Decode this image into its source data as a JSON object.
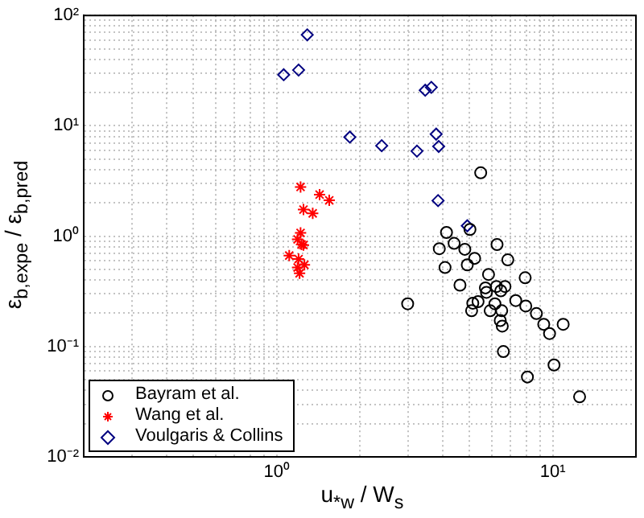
{
  "chart_data": {
    "type": "scatter",
    "xlabel": "u$_{*w}$ / W$_{s}$",
    "ylabel": "ε$_{b,expe}$ / ε$_{b,pred}$",
    "log": "xy",
    "grid": true,
    "legend": "bottom left",
    "xlim": [
      0.2,
      20
    ],
    "ylim": [
      0.01,
      100
    ],
    "xticks": [
      {
        "value": 0.2,
        "label": null
      },
      {
        "value": 0.3,
        "label": null
      },
      {
        "value": 0.4,
        "label": null
      },
      {
        "value": 0.5,
        "label": null
      },
      {
        "value": 0.6,
        "label": null
      },
      {
        "value": 0.7,
        "label": null
      },
      {
        "value": 0.8,
        "label": null
      },
      {
        "value": 0.9,
        "label": null
      },
      {
        "value": 1,
        "label": "10⁰"
      },
      {
        "value": 2,
        "label": null
      },
      {
        "value": 3,
        "label": null
      },
      {
        "value": 4,
        "label": null
      },
      {
        "value": 5,
        "label": null
      },
      {
        "value": 6,
        "label": null
      },
      {
        "value": 7,
        "label": null
      },
      {
        "value": 8,
        "label": null
      },
      {
        "value": 9,
        "label": null
      },
      {
        "value": 10,
        "label": "10¹"
      },
      {
        "value": 20,
        "label": null
      }
    ],
    "yticks": [
      {
        "value": 0.01,
        "label": "10⁻²"
      },
      {
        "value": 0.02,
        "label": null
      },
      {
        "value": 0.03,
        "label": null
      },
      {
        "value": 0.04,
        "label": null
      },
      {
        "value": 0.05,
        "label": null
      },
      {
        "value": 0.06,
        "label": null
      },
      {
        "value": 0.07,
        "label": null
      },
      {
        "value": 0.08,
        "label": null
      },
      {
        "value": 0.09,
        "label": null
      },
      {
        "value": 0.1,
        "label": "10⁻¹"
      },
      {
        "value": 0.2,
        "label": null
      },
      {
        "value": 0.3,
        "label": null
      },
      {
        "value": 0.4,
        "label": null
      },
      {
        "value": 0.5,
        "label": null
      },
      {
        "value": 0.6,
        "label": null
      },
      {
        "value": 0.7,
        "label": null
      },
      {
        "value": 0.8,
        "label": null
      },
      {
        "value": 0.9,
        "label": null
      },
      {
        "value": 1,
        "label": "10⁰"
      },
      {
        "value": 2,
        "label": null
      },
      {
        "value": 3,
        "label": null
      },
      {
        "value": 4,
        "label": null
      },
      {
        "value": 5,
        "label": null
      },
      {
        "value": 6,
        "label": null
      },
      {
        "value": 7,
        "label": null
      },
      {
        "value": 8,
        "label": null
      },
      {
        "value": 9,
        "label": null
      },
      {
        "value": 10,
        "label": "10¹"
      },
      {
        "value": 20,
        "label": null
      },
      {
        "value": 30,
        "label": null
      },
      {
        "value": 40,
        "label": null
      },
      {
        "value": 50,
        "label": null
      },
      {
        "value": 60,
        "label": null
      },
      {
        "value": 70,
        "label": null
      },
      {
        "value": 80,
        "label": null
      },
      {
        "value": 90,
        "label": null
      },
      {
        "value": 100,
        "label": "10²"
      }
    ],
    "series": [
      {
        "name": "Bayram et al.",
        "color": "#000000",
        "marker": "circle",
        "x": [
          5.48,
          4.12,
          5.01,
          6.28,
          3.88,
          4.39,
          4.8,
          4.07,
          4.9,
          5.21,
          6.87,
          5.85,
          7.94,
          4.61,
          5.7,
          5.75,
          6.25,
          6.71,
          6.48,
          2.98,
          5.13,
          5.36,
          6.17,
          7.34,
          7.98,
          5.08,
          5.93,
          6.53,
          8.72,
          6.45,
          6.56,
          9.27,
          10.9,
          9.73,
          6.62,
          10.1,
          8.09,
          12.5
        ],
        "values": [
          3.75,
          1.08,
          1.15,
          0.84,
          0.77,
          0.86,
          0.76,
          0.52,
          0.55,
          0.63,
          0.61,
          0.45,
          0.42,
          0.36,
          0.34,
          0.31,
          0.35,
          0.35,
          0.32,
          0.244,
          0.247,
          0.255,
          0.244,
          0.261,
          0.233,
          0.211,
          0.211,
          0.211,
          0.199,
          0.172,
          0.153,
          0.159,
          0.159,
          0.131,
          0.09,
          0.068,
          0.053,
          0.035
        ]
      },
      {
        "name": "Wang et al.",
        "color": "#ff0000",
        "marker": "cross",
        "x": [
          1.22,
          1.43,
          1.55,
          1.25,
          1.35,
          1.22,
          1.19,
          1.23,
          1.25,
          1.11,
          1.2,
          1.26,
          1.19,
          1.21
        ],
        "values": [
          2.79,
          2.38,
          2.11,
          1.74,
          1.61,
          1.07,
          0.935,
          0.84,
          0.83,
          0.667,
          0.62,
          0.55,
          0.52,
          0.46
        ]
      },
      {
        "name": "Voulgaris & Collins",
        "color": "#000080",
        "marker": "diamond",
        "x": [
          1.29,
          1.06,
          1.2,
          3.45,
          3.63,
          1.84,
          2.4,
          3.22,
          3.78,
          3.86,
          3.84,
          4.9
        ],
        "values": [
          66.7,
          29,
          32,
          21,
          22.3,
          7.9,
          6.6,
          5.9,
          8.4,
          6.5,
          2.1,
          1.24
        ]
      }
    ]
  }
}
